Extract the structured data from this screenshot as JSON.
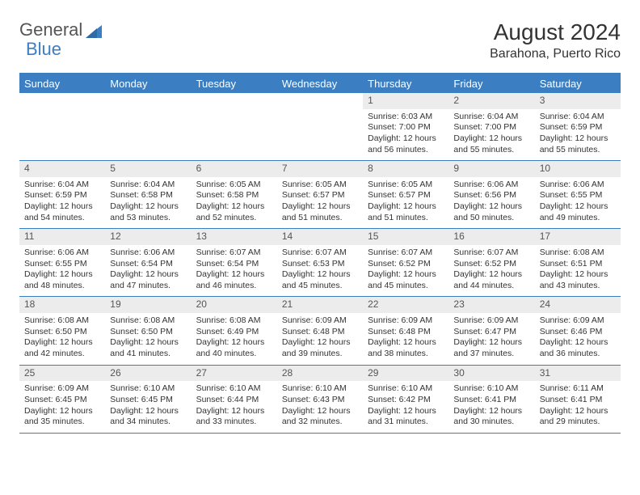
{
  "brand": {
    "general": "General",
    "blue": "Blue"
  },
  "title": "August 2024",
  "location": "Barahona, Puerto Rico",
  "colors": {
    "accent": "#3b7ec2",
    "header_text": "#ffffff",
    "daynum_bg": "#ececec",
    "body_text": "#333333",
    "background": "#ffffff"
  },
  "typography": {
    "title_fontsize": 28,
    "location_fontsize": 16,
    "dayname_fontsize": 13,
    "daynum_fontsize": 12,
    "cell_fontsize": 10.5
  },
  "day_names": [
    "Sunday",
    "Monday",
    "Tuesday",
    "Wednesday",
    "Thursday",
    "Friday",
    "Saturday"
  ],
  "weeks": [
    [
      {
        "day": "",
        "lines": []
      },
      {
        "day": "",
        "lines": []
      },
      {
        "day": "",
        "lines": []
      },
      {
        "day": "",
        "lines": []
      },
      {
        "day": "1",
        "lines": [
          "Sunrise: 6:03 AM",
          "Sunset: 7:00 PM",
          "Daylight: 12 hours and 56 minutes."
        ]
      },
      {
        "day": "2",
        "lines": [
          "Sunrise: 6:04 AM",
          "Sunset: 7:00 PM",
          "Daylight: 12 hours and 55 minutes."
        ]
      },
      {
        "day": "3",
        "lines": [
          "Sunrise: 6:04 AM",
          "Sunset: 6:59 PM",
          "Daylight: 12 hours and 55 minutes."
        ]
      }
    ],
    [
      {
        "day": "4",
        "lines": [
          "Sunrise: 6:04 AM",
          "Sunset: 6:59 PM",
          "Daylight: 12 hours and 54 minutes."
        ]
      },
      {
        "day": "5",
        "lines": [
          "Sunrise: 6:04 AM",
          "Sunset: 6:58 PM",
          "Daylight: 12 hours and 53 minutes."
        ]
      },
      {
        "day": "6",
        "lines": [
          "Sunrise: 6:05 AM",
          "Sunset: 6:58 PM",
          "Daylight: 12 hours and 52 minutes."
        ]
      },
      {
        "day": "7",
        "lines": [
          "Sunrise: 6:05 AM",
          "Sunset: 6:57 PM",
          "Daylight: 12 hours and 51 minutes."
        ]
      },
      {
        "day": "8",
        "lines": [
          "Sunrise: 6:05 AM",
          "Sunset: 6:57 PM",
          "Daylight: 12 hours and 51 minutes."
        ]
      },
      {
        "day": "9",
        "lines": [
          "Sunrise: 6:06 AM",
          "Sunset: 6:56 PM",
          "Daylight: 12 hours and 50 minutes."
        ]
      },
      {
        "day": "10",
        "lines": [
          "Sunrise: 6:06 AM",
          "Sunset: 6:55 PM",
          "Daylight: 12 hours and 49 minutes."
        ]
      }
    ],
    [
      {
        "day": "11",
        "lines": [
          "Sunrise: 6:06 AM",
          "Sunset: 6:55 PM",
          "Daylight: 12 hours and 48 minutes."
        ]
      },
      {
        "day": "12",
        "lines": [
          "Sunrise: 6:06 AM",
          "Sunset: 6:54 PM",
          "Daylight: 12 hours and 47 minutes."
        ]
      },
      {
        "day": "13",
        "lines": [
          "Sunrise: 6:07 AM",
          "Sunset: 6:54 PM",
          "Daylight: 12 hours and 46 minutes."
        ]
      },
      {
        "day": "14",
        "lines": [
          "Sunrise: 6:07 AM",
          "Sunset: 6:53 PM",
          "Daylight: 12 hours and 45 minutes."
        ]
      },
      {
        "day": "15",
        "lines": [
          "Sunrise: 6:07 AM",
          "Sunset: 6:52 PM",
          "Daylight: 12 hours and 45 minutes."
        ]
      },
      {
        "day": "16",
        "lines": [
          "Sunrise: 6:07 AM",
          "Sunset: 6:52 PM",
          "Daylight: 12 hours and 44 minutes."
        ]
      },
      {
        "day": "17",
        "lines": [
          "Sunrise: 6:08 AM",
          "Sunset: 6:51 PM",
          "Daylight: 12 hours and 43 minutes."
        ]
      }
    ],
    [
      {
        "day": "18",
        "lines": [
          "Sunrise: 6:08 AM",
          "Sunset: 6:50 PM",
          "Daylight: 12 hours and 42 minutes."
        ]
      },
      {
        "day": "19",
        "lines": [
          "Sunrise: 6:08 AM",
          "Sunset: 6:50 PM",
          "Daylight: 12 hours and 41 minutes."
        ]
      },
      {
        "day": "20",
        "lines": [
          "Sunrise: 6:08 AM",
          "Sunset: 6:49 PM",
          "Daylight: 12 hours and 40 minutes."
        ]
      },
      {
        "day": "21",
        "lines": [
          "Sunrise: 6:09 AM",
          "Sunset: 6:48 PM",
          "Daylight: 12 hours and 39 minutes."
        ]
      },
      {
        "day": "22",
        "lines": [
          "Sunrise: 6:09 AM",
          "Sunset: 6:48 PM",
          "Daylight: 12 hours and 38 minutes."
        ]
      },
      {
        "day": "23",
        "lines": [
          "Sunrise: 6:09 AM",
          "Sunset: 6:47 PM",
          "Daylight: 12 hours and 37 minutes."
        ]
      },
      {
        "day": "24",
        "lines": [
          "Sunrise: 6:09 AM",
          "Sunset: 6:46 PM",
          "Daylight: 12 hours and 36 minutes."
        ]
      }
    ],
    [
      {
        "day": "25",
        "lines": [
          "Sunrise: 6:09 AM",
          "Sunset: 6:45 PM",
          "Daylight: 12 hours and 35 minutes."
        ]
      },
      {
        "day": "26",
        "lines": [
          "Sunrise: 6:10 AM",
          "Sunset: 6:45 PM",
          "Daylight: 12 hours and 34 minutes."
        ]
      },
      {
        "day": "27",
        "lines": [
          "Sunrise: 6:10 AM",
          "Sunset: 6:44 PM",
          "Daylight: 12 hours and 33 minutes."
        ]
      },
      {
        "day": "28",
        "lines": [
          "Sunrise: 6:10 AM",
          "Sunset: 6:43 PM",
          "Daylight: 12 hours and 32 minutes."
        ]
      },
      {
        "day": "29",
        "lines": [
          "Sunrise: 6:10 AM",
          "Sunset: 6:42 PM",
          "Daylight: 12 hours and 31 minutes."
        ]
      },
      {
        "day": "30",
        "lines": [
          "Sunrise: 6:10 AM",
          "Sunset: 6:41 PM",
          "Daylight: 12 hours and 30 minutes."
        ]
      },
      {
        "day": "31",
        "lines": [
          "Sunrise: 6:11 AM",
          "Sunset: 6:41 PM",
          "Daylight: 12 hours and 29 minutes."
        ]
      }
    ]
  ]
}
